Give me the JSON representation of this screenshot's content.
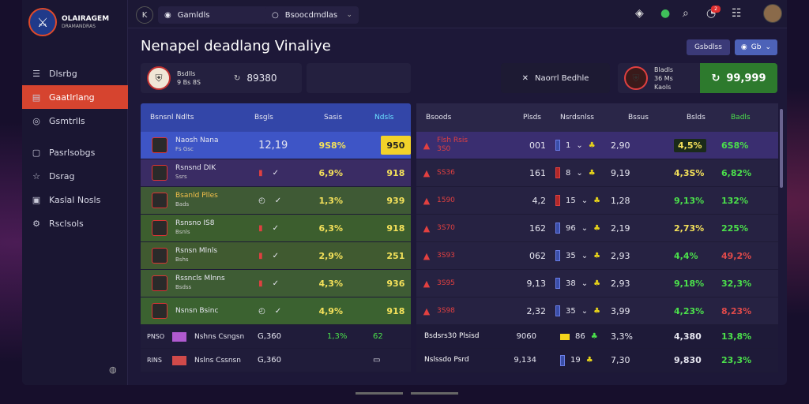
{
  "brand": {
    "name": "OLAIRAGEM",
    "tagline": "DRAMANDRAS"
  },
  "sidebar": {
    "items": [
      {
        "label": "Dlsrbg",
        "icon": "menu-icon"
      },
      {
        "label": "Gaatlrlang",
        "icon": "calendar-icon",
        "active": true
      },
      {
        "label": "Gsmtrlls",
        "icon": "user-icon"
      },
      {
        "label": "Pasrlsobgs",
        "icon": "ticket-icon"
      },
      {
        "label": "Dsrag",
        "icon": "star-icon"
      },
      {
        "label": "Kaslal Nosls",
        "icon": "clipboard-icon"
      },
      {
        "label": "Rsclsols",
        "icon": "gear-icon"
      }
    ]
  },
  "topbar": {
    "select1": "Gamldls",
    "select2": "Bsoocdmdlas",
    "badge": "2"
  },
  "page": {
    "title": "Nenapel deadlang Vinaliye"
  },
  "actions": {
    "btn1": "Gsbdlss",
    "btn2": "Gb"
  },
  "strip": {
    "left": {
      "line1": "Bsdlls",
      "line2": "9 Bs 8S",
      "odds": "89380"
    },
    "mid": {
      "label": "Naorrl Bedhle"
    },
    "right": {
      "line1": "Bladls",
      "line2": "36 Ms",
      "line3": "Kaols",
      "odds": "99,999"
    }
  },
  "left_table": {
    "headers": [
      "Bsnsnl Ndlts",
      "Bsgls",
      "Sasis",
      "Ndsls"
    ],
    "rows": [
      {
        "team": "Naosh Nana",
        "sub": "Fs Gsc",
        "mid": "12,19",
        "pct": "9S8%",
        "val": "950"
      },
      {
        "team": "Rsnsnd DIK",
        "sub": "Ssrs",
        "mid": "",
        "pct": "6,9%",
        "val": "918"
      },
      {
        "team": "Bsanld Plles",
        "sub": "Bads",
        "mid": "",
        "pct": "1,3%",
        "val": "939"
      },
      {
        "team": "Rsnsno IS8",
        "sub": "Bsnls",
        "mid": "",
        "pct": "6,3%",
        "val": "918"
      },
      {
        "team": "Rsnsn Mlnls",
        "sub": "Bshs",
        "mid": "",
        "pct": "2,9%",
        "val": "251"
      },
      {
        "team": "Rssncls Mlnns",
        "sub": "Bsdss",
        "mid": "",
        "pct": "4,3%",
        "val": "936"
      },
      {
        "team": "Nsnsn Bsinc",
        "sub": "",
        "mid": "",
        "pct": "4,9%",
        "val": "918"
      },
      {
        "team": "Nshns Csngsn",
        "pre": "PNSO",
        "mid": "G,360",
        "pct": "1,3%",
        "val": "62"
      },
      {
        "team": "Nslns Cssnsn",
        "pre": "RINS",
        "mid": "G,360",
        "pct": "",
        "val": ""
      }
    ]
  },
  "right_table": {
    "headers": [
      "Bsoods",
      "Plsds",
      "Nsrdsnlss",
      "Bssus",
      "Bslds",
      "Badls"
    ],
    "rows": [
      {
        "team": "Flsh Rsis",
        "team2": "3S0",
        "num": "001",
        "tag": "1",
        "val": "2,90",
        "p1": "4,5%",
        "p2": "6S8%"
      },
      {
        "team": "SS36",
        "team2": "",
        "num": "161",
        "tag": "8",
        "val": "9,19",
        "p1": "4,3S%",
        "p2": "6,82%"
      },
      {
        "team": "1590",
        "team2": "",
        "num": "4,2",
        "tag": "15",
        "val": "1,28",
        "p1": "9,13%",
        "p2": "132%"
      },
      {
        "team": "3S70",
        "team2": "",
        "num": "162",
        "tag": "96",
        "val": "2,19",
        "p1": "2,73%",
        "p2": "225%"
      },
      {
        "team": "3S93",
        "team2": "",
        "num": "062",
        "tag": "35",
        "val": "2,93",
        "p1": "4,4%",
        "p2": "49,2%"
      },
      {
        "team": "3S95",
        "team2": "",
        "num": "9,13",
        "tag": "38",
        "val": "2,93",
        "p1": "9,18%",
        "p2": "32,3%"
      },
      {
        "team": "3S98",
        "team2": "",
        "num": "2,32",
        "tag": "35",
        "val": "3,99",
        "p1": "4,23%",
        "p2": "8,23%"
      },
      {
        "team": "Bsdsrs30 Plsisd",
        "team2": "",
        "num": "9060",
        "tag": "86",
        "val": "3,3%",
        "p1": "4,380",
        "p2": "13,8%"
      },
      {
        "team": "Nslssdo Psrd",
        "team2": "",
        "num": "9,134",
        "tag": "19",
        "val": "7,30",
        "p1": "9,830",
        "p2": "23,3%"
      }
    ]
  }
}
